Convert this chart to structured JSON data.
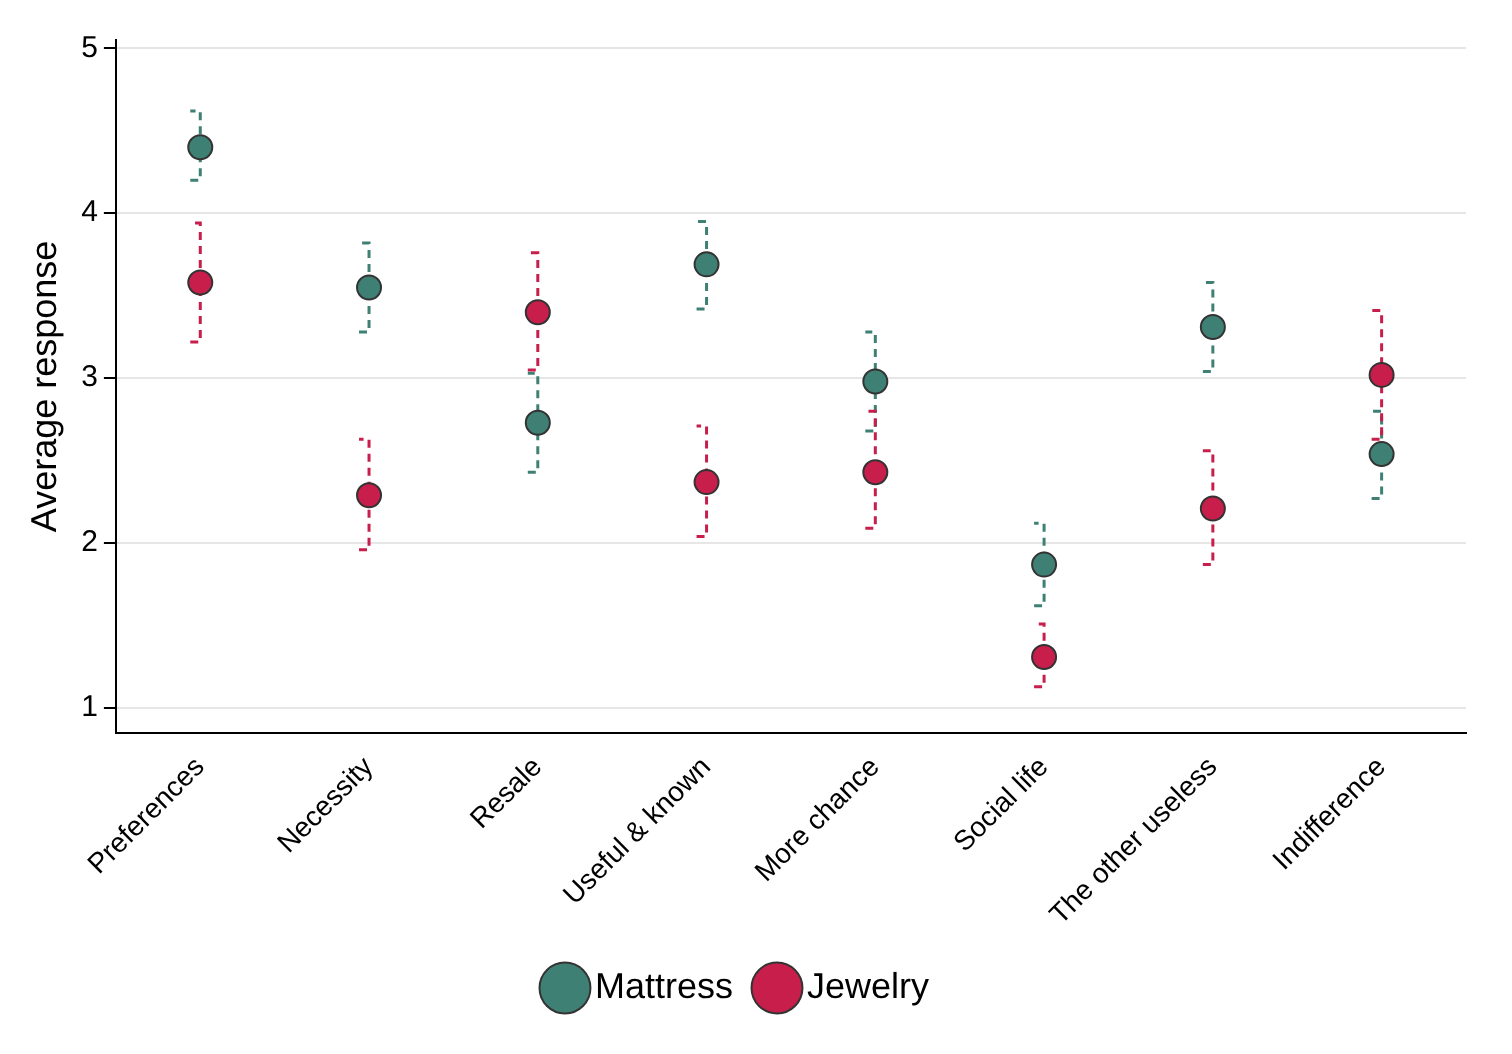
{
  "chart_data": {
    "type": "scatter",
    "ylabel": "Average response",
    "categories": [
      "Preferences",
      "Necessity",
      "Resale",
      "Useful & known",
      "More chance",
      "Social life",
      "The other useless",
      "Indifference"
    ],
    "series": [
      {
        "name": "Mattress",
        "color": "#3f8075",
        "values": [
          4.4,
          3.55,
          2.73,
          3.69,
          2.98,
          1.87,
          3.31,
          2.54
        ],
        "errors": [
          [
            4.2,
            4.62
          ],
          [
            3.28,
            3.82
          ],
          [
            2.43,
            3.03
          ],
          [
            3.42,
            3.95
          ],
          [
            2.68,
            3.28
          ],
          [
            1.62,
            2.12
          ],
          [
            3.04,
            3.58
          ],
          [
            2.27,
            2.8
          ]
        ]
      },
      {
        "name": "Jewelry",
        "color": "#c81e4b",
        "values": [
          3.58,
          2.29,
          3.4,
          2.37,
          2.43,
          1.31,
          2.21,
          3.02
        ],
        "errors": [
          [
            3.22,
            3.94
          ],
          [
            1.96,
            2.63
          ],
          [
            3.05,
            3.76
          ],
          [
            2.04,
            2.71
          ],
          [
            2.09,
            2.8
          ],
          [
            1.13,
            1.51
          ],
          [
            1.87,
            2.56
          ],
          [
            2.63,
            3.41
          ]
        ]
      }
    ],
    "ylim": [
      0.85,
      5.05
    ],
    "yticks": [
      1,
      2,
      3,
      4,
      5
    ],
    "grid": "y",
    "legend": "bottom",
    "marker": "circle"
  }
}
